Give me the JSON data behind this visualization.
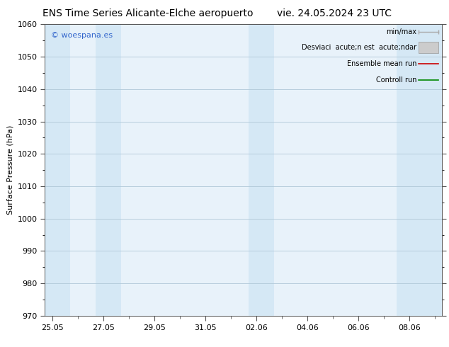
{
  "title_left": "ENS Time Series Alicante-Elche aeropuerto",
  "title_right": "vie. 24.05.2024 23 UTC",
  "ylabel": "Surface Pressure (hPa)",
  "ylim": [
    970,
    1060
  ],
  "yticks": [
    970,
    980,
    990,
    1000,
    1010,
    1020,
    1030,
    1040,
    1050,
    1060
  ],
  "xtick_labels": [
    "25.05",
    "27.05",
    "29.05",
    "31.05",
    "02.06",
    "04.06",
    "06.06",
    "08.06"
  ],
  "xtick_positions": [
    0,
    2,
    4,
    6,
    8,
    10,
    12,
    14
  ],
  "xlim": [
    -0.3,
    15.3
  ],
  "shaded_bands": [
    {
      "x_start": -0.3,
      "x_end": 0.7
    },
    {
      "x_start": 1.7,
      "x_end": 2.7
    },
    {
      "x_start": 7.7,
      "x_end": 8.7
    },
    {
      "x_start": 13.5,
      "x_end": 15.3
    }
  ],
  "band_color": "#d5e8f5",
  "plot_bg_color": "#e8f2fa",
  "background_color": "#ffffff",
  "grid_color": "#b0c8d8",
  "watermark": "© woespana.es",
  "watermark_color": "#3366cc",
  "legend_label_0": "min/max",
  "legend_label_1": "Desviaci  acute;n est  acute;ndar",
  "legend_label_2": "Ensemble mean run",
  "legend_label_3": "Controll run",
  "legend_color_0": "#aaaaaa",
  "legend_color_1": "#cccccc",
  "legend_color_2": "#cc0000",
  "legend_color_3": "#008800",
  "title_fontsize": 10,
  "axis_label_fontsize": 8,
  "tick_fontsize": 8,
  "legend_fontsize": 7,
  "watermark_fontsize": 8
}
